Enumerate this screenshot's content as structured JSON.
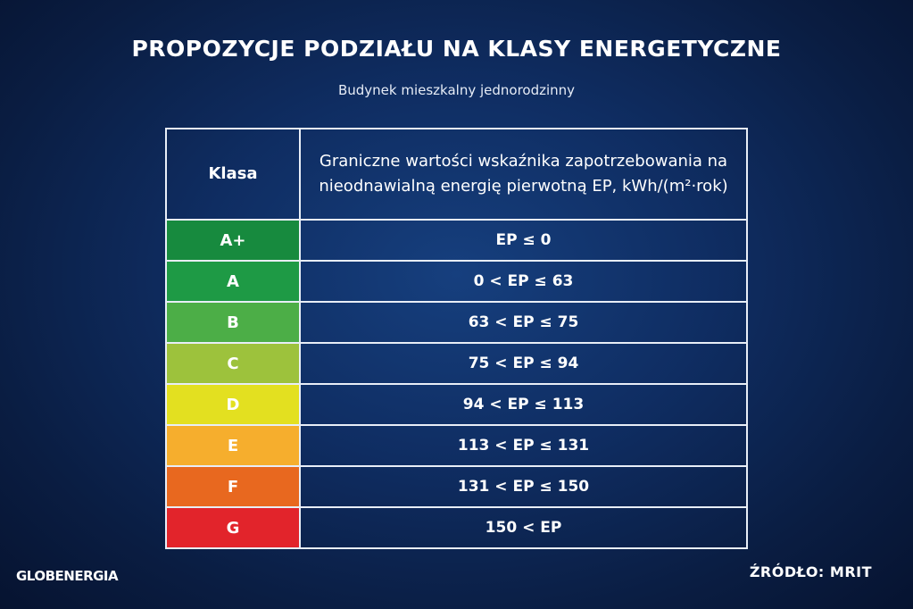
{
  "title": "PROPOZYCJE PODZIAŁU NA KLASY ENERGETYCZNE",
  "subtitle": "Budynek mieszkalny jednorodzinny",
  "table": {
    "headers": [
      "Klasa",
      "Graniczne wartości wskaźnika zapotrzebowania na nieodnawialną energię pierwotną EP, kWh/(m²·rok)"
    ],
    "rows": [
      {
        "class": "A+",
        "range": "EP ≤ 0",
        "color": "#178a3e"
      },
      {
        "class": "A",
        "range": "0 < EP ≤ 63",
        "color": "#1e9a45"
      },
      {
        "class": "B",
        "range": "63 < EP ≤ 75",
        "color": "#4cae47"
      },
      {
        "class": "C",
        "range": "75 < EP ≤ 94",
        "color": "#9dc23c"
      },
      {
        "class": "D",
        "range": "94 < EP ≤ 113",
        "color": "#e3e020"
      },
      {
        "class": "E",
        "range": "113 < EP ≤ 131",
        "color": "#f6ae2d"
      },
      {
        "class": "F",
        "range": "131 < EP ≤ 150",
        "color": "#e8681f"
      },
      {
        "class": "G",
        "range": "150 < EP",
        "color": "#e2242b"
      }
    ]
  },
  "footer": {
    "logo": "GLOBENERGIA",
    "source": "ŹRÓDŁO: MRIT"
  }
}
